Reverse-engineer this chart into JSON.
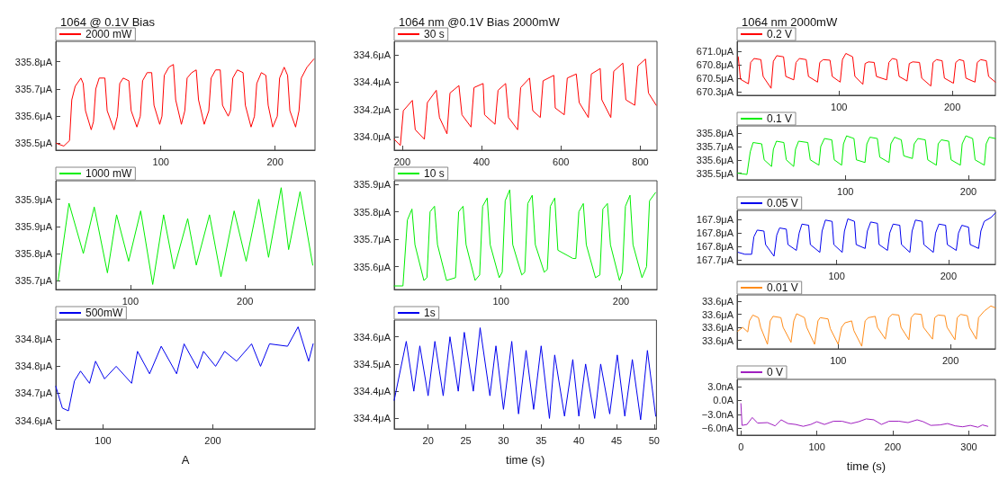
{
  "chart_data": [
    {
      "type": "line",
      "title": "1064 @ 0.1V Bias",
      "legend": "top left",
      "xlim": [
        8,
        235
      ],
      "xticks": [
        100,
        200
      ],
      "ylim": [
        335.475,
        335.875
      ],
      "yticks": [
        {
          "value": 335.5,
          "label": "335.5μA"
        },
        {
          "value": 335.6,
          "label": "335.6μA"
        },
        {
          "value": 335.7,
          "label": "335.7μA"
        },
        {
          "value": 335.8,
          "label": "335.8μA"
        }
      ],
      "series": [
        {
          "name": "2000 mW",
          "color": "#ff0000",
          "x": [
            8.5,
            15,
            20,
            22,
            25,
            30,
            32,
            34,
            39,
            41,
            43,
            46,
            51,
            53,
            59,
            62,
            64,
            67,
            72,
            74,
            79,
            82,
            84,
            88,
            92,
            94,
            99,
            101,
            103,
            107,
            111,
            113,
            118,
            121,
            123,
            127,
            131,
            133,
            138,
            142,
            144,
            148,
            152,
            154,
            159,
            161,
            163,
            167,
            172,
            174,
            179,
            182,
            184,
            188,
            192,
            194,
            198,
            202,
            204,
            208,
            211,
            213,
            218,
            221,
            223,
            228,
            234
          ],
          "values": [
            335.5,
            335.49,
            335.51,
            335.66,
            335.71,
            335.74,
            335.72,
            335.62,
            335.55,
            335.58,
            335.7,
            335.74,
            335.74,
            335.62,
            335.55,
            335.6,
            335.72,
            335.74,
            335.73,
            335.62,
            335.56,
            335.6,
            335.73,
            335.76,
            335.76,
            335.64,
            335.57,
            335.6,
            335.75,
            335.78,
            335.79,
            335.66,
            335.57,
            335.62,
            335.74,
            335.76,
            335.77,
            335.66,
            335.57,
            335.62,
            335.74,
            335.77,
            335.77,
            335.64,
            335.6,
            335.62,
            335.74,
            335.77,
            335.76,
            335.64,
            335.56,
            335.6,
            335.72,
            335.76,
            335.75,
            335.64,
            335.56,
            335.6,
            335.74,
            335.78,
            335.75,
            335.62,
            335.56,
            335.62,
            335.74,
            335.78,
            335.81
          ]
        }
      ]
    },
    {
      "type": "line",
      "legend": "top left",
      "xlim": [
        35,
        261
      ],
      "xticks": [
        100,
        200
      ],
      "ylim": [
        335.697,
        335.978
      ],
      "yticks": [
        {
          "value": 335.72,
          "label": "335.7μA"
        },
        {
          "value": 335.79,
          "label": "335.8μA"
        },
        {
          "value": 335.86,
          "label": "335.9μA"
        },
        {
          "value": 335.93,
          "label": "335.9μA"
        }
      ],
      "series": [
        {
          "name": "1000 mW",
          "color": "#00ee00",
          "x": [
            37,
            46.5,
            59,
            68.5,
            80,
            88,
            98.5,
            109,
            119.5,
            129,
            138,
            150,
            157.5,
            169,
            179,
            190.5,
            201,
            212,
            220.5,
            231.5,
            238,
            248,
            259
          ],
          "values": [
            335.72,
            335.92,
            335.79,
            335.91,
            335.74,
            335.89,
            335.77,
            335.9,
            335.71,
            335.89,
            335.75,
            335.88,
            335.76,
            335.89,
            335.73,
            335.9,
            335.77,
            335.93,
            335.78,
            335.96,
            335.8,
            335.95,
            335.76
          ]
        }
      ]
    },
    {
      "type": "line",
      "legend": "top left",
      "xlabel": "A",
      "xlim": [
        57,
        293
      ],
      "xticks": [
        100,
        200
      ],
      "ylim": [
        334.575,
        334.895
      ],
      "yticks": [
        {
          "value": 334.6,
          "label": "334.6μA"
        },
        {
          "value": 334.68,
          "label": "334.7μA"
        },
        {
          "value": 334.76,
          "label": "334.8μA"
        },
        {
          "value": 334.84,
          "label": "334.8μA"
        }
      ],
      "series": [
        {
          "name": "500mW",
          "color": "#0000ee",
          "x": [
            57,
            63,
            68.5,
            74,
            79.5,
            87.7,
            93.2,
            101.4,
            112,
            126,
            131.4,
            142.4,
            153,
            167,
            173.8,
            186,
            191.5,
            202.5,
            210.7,
            221.6,
            235.3,
            243.4,
            251.6,
            268,
            277.6,
            287.2,
            291.3
          ],
          "values": [
            334.7,
            334.636,
            334.628,
            334.716,
            334.745,
            334.709,
            334.774,
            334.722,
            334.759,
            334.709,
            334.803,
            334.737,
            334.818,
            334.737,
            334.825,
            334.753,
            334.803,
            334.759,
            334.803,
            334.774,
            334.825,
            334.759,
            334.825,
            334.818,
            334.875,
            334.774,
            334.825
          ]
        }
      ]
    },
    {
      "type": "line",
      "title": "1064 nm @0.1V Bias 2000mW",
      "legend": "top left",
      "xlim": [
        180,
        842
      ],
      "xticks": [
        200,
        400,
        600,
        800
      ],
      "ylim": [
        333.9,
        334.7
      ],
      "yticks": [
        {
          "value": 334.0,
          "label": "334.0μA"
        },
        {
          "value": 334.2,
          "label": "334.2μA"
        },
        {
          "value": 334.4,
          "label": "334.4μA"
        },
        {
          "value": 334.6,
          "label": "334.6μA"
        }
      ],
      "series": [
        {
          "name": "30 s",
          "color": "#ff0000",
          "x": [
            180,
            195.5,
            203,
            225.7,
            233,
            256,
            263.6,
            286,
            294,
            313,
            320.5,
            343,
            350.7,
            373.4,
            381,
            404,
            407.6,
            434,
            441.6,
            460.7,
            468,
            491,
            498.5,
            521,
            529,
            548,
            555,
            582,
            585.7,
            608.4,
            616,
            638.6,
            646,
            669,
            676.6,
            699,
            703,
            725.7,
            733,
            756,
            763.6,
            786,
            794,
            813,
            820.5,
            840
          ],
          "values": [
            333.98,
            333.935,
            334.19,
            334.266,
            334.05,
            333.98,
            334.25,
            334.34,
            334.14,
            334.02,
            334.32,
            334.375,
            334.16,
            334.07,
            334.36,
            334.39,
            334.16,
            334.09,
            334.34,
            334.39,
            334.14,
            334.05,
            334.36,
            334.43,
            334.19,
            334.14,
            334.41,
            334.45,
            334.21,
            334.16,
            334.43,
            334.46,
            334.25,
            334.14,
            334.46,
            334.5,
            334.27,
            334.14,
            334.48,
            334.54,
            334.27,
            334.23,
            334.52,
            334.57,
            334.32,
            334.23
          ]
        }
      ]
    },
    {
      "type": "line",
      "legend": "top left",
      "xlim": [
        11,
        230
      ],
      "xticks": [
        100,
        200
      ],
      "ylim": [
        335.517,
        335.913
      ],
      "yticks": [
        {
          "value": 335.6,
          "label": "335.6μA"
        },
        {
          "value": 335.7,
          "label": "335.7μA"
        },
        {
          "value": 335.8,
          "label": "335.8μA"
        },
        {
          "value": 335.9,
          "label": "335.9μA"
        }
      ],
      "series": [
        {
          "name": "10 s",
          "color": "#00ee00",
          "x": [
            11,
            18.3,
            22,
            25.8,
            28.3,
            35.7,
            38.3,
            40.9,
            44.6,
            47.1,
            54.6,
            62.1,
            64.7,
            68.4,
            70.9,
            78.4,
            82.2,
            84.7,
            88.5,
            91,
            98.5,
            101,
            103.5,
            107.3,
            109.8,
            117.3,
            119.8,
            122.3,
            126,
            128.6,
            136,
            138.6,
            141.1,
            144.8,
            147.4,
            159.9,
            162.4,
            164.9,
            168.6,
            171.1,
            178.7,
            182.4,
            184.9,
            188.7,
            191.2,
            198.7,
            201.2,
            203.7,
            207.5,
            210,
            217.5,
            221.3,
            223.8,
            228.8
          ],
          "values": [
            335.53,
            335.53,
            335.77,
            335.81,
            335.68,
            335.55,
            335.56,
            335.8,
            335.82,
            335.68,
            335.55,
            335.56,
            335.8,
            335.82,
            335.68,
            335.55,
            335.57,
            335.82,
            335.85,
            335.68,
            335.56,
            335.58,
            335.84,
            335.88,
            335.68,
            335.57,
            335.58,
            335.83,
            335.86,
            335.68,
            335.58,
            335.59,
            335.82,
            335.85,
            335.66,
            335.63,
            335.63,
            335.8,
            335.83,
            335.68,
            335.56,
            335.57,
            335.81,
            335.83,
            335.68,
            335.55,
            335.58,
            335.82,
            335.86,
            335.68,
            335.56,
            335.6,
            335.84,
            335.87
          ]
        }
      ]
    },
    {
      "type": "line",
      "legend": "top left",
      "xlabel": "time (s)",
      "xlim": [
        15.5,
        50.3
      ],
      "xticks": [
        20,
        25,
        30,
        35,
        40,
        45,
        50
      ],
      "ylim": [
        334.357,
        334.597
      ],
      "yticks": [
        {
          "value": 334.38,
          "label": "334.4μA"
        },
        {
          "value": 334.44,
          "label": "334.4μA"
        },
        {
          "value": 334.5,
          "label": "334.5μA"
        },
        {
          "value": 334.56,
          "label": "334.6μA"
        }
      ],
      "series": [
        {
          "name": "1s",
          "color": "#0000ee",
          "x": [
            15.5,
            17.1,
            18.1,
            18.9,
            20,
            20.9,
            22,
            22.9,
            24,
            24.8,
            26,
            26.9,
            28.2,
            29,
            30,
            31.1,
            32,
            33,
            34,
            35,
            36.1,
            36.8,
            38.1,
            39.2,
            40,
            40.9,
            42.1,
            42.9,
            44.1,
            45.1,
            46.1,
            47.1,
            48.2,
            49.1,
            50.2
          ],
          "values": [
            334.42,
            334.55,
            334.44,
            334.54,
            334.43,
            334.55,
            334.43,
            334.56,
            334.44,
            334.57,
            334.44,
            334.58,
            334.43,
            334.54,
            334.4,
            334.55,
            334.39,
            334.53,
            334.4,
            334.54,
            334.38,
            334.52,
            334.385,
            334.51,
            334.385,
            334.5,
            334.38,
            334.5,
            334.39,
            334.52,
            334.385,
            334.51,
            334.377,
            334.53,
            334.385
          ]
        }
      ]
    },
    {
      "type": "line",
      "title": "1064 nm 2000mW",
      "legend": "top left",
      "xlim": [
        10,
        238
      ],
      "xticks": [
        100,
        200
      ],
      "ylim": [
        670.215,
        671.175
      ],
      "yticks": [
        {
          "value": 670.28,
          "label": "670.3μA"
        },
        {
          "value": 670.52,
          "label": "670.5μA"
        },
        {
          "value": 670.76,
          "label": "670.8μA"
        },
        {
          "value": 671.0,
          "label": "671.0μA"
        }
      ],
      "series": [
        {
          "name": "0.2 V",
          "color": "#ff0000",
          "x": [
            11,
            13,
            20,
            22,
            25,
            31,
            33,
            40,
            42,
            45,
            51,
            53,
            60,
            62,
            65,
            71,
            73,
            81,
            83,
            86,
            92,
            94,
            101,
            103,
            106,
            112,
            114,
            121,
            123,
            126,
            131,
            133,
            142,
            144,
            147,
            151,
            153,
            160,
            162,
            165,
            171,
            173,
            181,
            183,
            186,
            191,
            193,
            201,
            203,
            206,
            210,
            212,
            220,
            222,
            225,
            230,
            232,
            238
          ],
          "values": [
            670.9,
            670.5,
            670.42,
            670.8,
            670.87,
            670.85,
            670.55,
            670.34,
            670.82,
            670.92,
            670.9,
            670.55,
            670.49,
            670.8,
            670.87,
            670.85,
            670.55,
            670.45,
            670.8,
            670.85,
            670.84,
            670.55,
            670.45,
            670.85,
            670.96,
            670.9,
            670.55,
            670.41,
            670.78,
            670.81,
            670.8,
            670.55,
            670.49,
            670.8,
            670.87,
            670.85,
            670.55,
            670.47,
            670.78,
            670.81,
            670.8,
            670.52,
            670.38,
            670.8,
            670.85,
            670.83,
            670.52,
            670.43,
            670.8,
            670.85,
            670.83,
            670.52,
            670.45,
            670.8,
            670.85,
            670.83,
            670.55,
            670.45
          ]
        }
      ]
    },
    {
      "type": "line",
      "legend": "top left",
      "xlim": [
        12,
        222
      ],
      "xticks": [
        100,
        200
      ],
      "ylim": [
        335.45,
        335.855
      ],
      "yticks": [
        {
          "value": 335.5,
          "label": "335.5μA"
        },
        {
          "value": 335.6,
          "label": "335.6μA"
        },
        {
          "value": 335.7,
          "label": "335.7μA"
        },
        {
          "value": 335.8,
          "label": "335.8μA"
        }
      ],
      "series": [
        {
          "name": "0.1 V",
          "color": "#00ee00",
          "x": [
            12.5,
            20,
            22.7,
            25,
            32,
            34,
            40,
            41.5,
            44,
            50,
            52,
            58,
            59.5,
            62,
            69.5,
            71.5,
            78.5,
            80,
            83,
            89,
            91,
            97,
            98.5,
            101,
            107,
            109,
            116,
            117.5,
            120,
            126,
            128,
            135.5,
            137,
            140,
            145.5,
            147.5,
            154.5,
            156,
            159,
            165,
            167,
            174,
            175.5,
            178,
            184,
            186,
            193.5,
            195,
            198,
            203.5,
            205.5,
            213,
            214.5,
            217,
            222
          ],
          "values": [
            335.5,
            335.49,
            335.66,
            335.73,
            335.72,
            335.6,
            335.55,
            335.68,
            335.74,
            335.73,
            335.6,
            335.55,
            335.68,
            335.74,
            335.73,
            335.6,
            335.56,
            335.7,
            335.76,
            335.75,
            335.6,
            335.56,
            335.72,
            335.78,
            335.76,
            335.6,
            335.58,
            335.72,
            335.77,
            335.76,
            335.62,
            335.58,
            335.72,
            335.77,
            335.75,
            335.63,
            335.61,
            335.72,
            335.76,
            335.75,
            335.6,
            335.56,
            335.72,
            335.75,
            335.74,
            335.6,
            335.56,
            335.72,
            335.78,
            335.76,
            335.6,
            335.56,
            335.72,
            335.77,
            335.76
          ]
        }
      ]
    },
    {
      "type": "line",
      "legend": "top left",
      "xlim": [
        11,
        242
      ],
      "xticks": [
        100,
        200
      ],
      "ylim": [
        167.678,
        167.957
      ],
      "yticks": [
        {
          "value": 167.7,
          "label": "167.7μA"
        },
        {
          "value": 167.77,
          "label": "167.8μA"
        },
        {
          "value": 167.84,
          "label": "167.8μA"
        },
        {
          "value": 167.91,
          "label": "167.9μA"
        }
      ],
      "series": [
        {
          "name": "0.05 V",
          "color": "#0000ee",
          "x": [
            12,
            18,
            24,
            26,
            29,
            35,
            36.5,
            44,
            46.5,
            49,
            55,
            56.5,
            64,
            66.5,
            69,
            75,
            76.5,
            85,
            87,
            90,
            96,
            97.5,
            105,
            107,
            110,
            116,
            117.5,
            125.5,
            127.5,
            130.5,
            136.5,
            138,
            145.5,
            147.5,
            150.5,
            156.5,
            158,
            165.5,
            167.5,
            170.5,
            176.5,
            178,
            186.5,
            188.5,
            191.5,
            197.5,
            199,
            207,
            209,
            212,
            218,
            219.5,
            227,
            229,
            232,
            238,
            242
          ],
          "values": [
            167.74,
            167.73,
            167.73,
            167.82,
            167.855,
            167.85,
            167.78,
            167.72,
            167.83,
            167.866,
            167.86,
            167.78,
            167.75,
            167.84,
            167.886,
            167.88,
            167.78,
            167.74,
            167.85,
            167.907,
            167.9,
            167.78,
            167.74,
            167.85,
            167.913,
            167.9,
            167.78,
            167.76,
            167.85,
            167.897,
            167.89,
            167.78,
            167.75,
            167.84,
            167.886,
            167.88,
            167.78,
            167.74,
            167.85,
            167.907,
            167.9,
            167.78,
            167.74,
            167.84,
            167.886,
            167.88,
            167.78,
            167.75,
            167.84,
            167.88,
            167.87,
            167.78,
            167.76,
            167.85,
            167.9,
            167.92,
            167.944
          ]
        }
      ]
    },
    {
      "type": "line",
      "legend": "top left",
      "xlim": [
        10,
        240
      ],
      "xticks": [
        100,
        200
      ],
      "ylim": [
        33.557,
        33.64
      ],
      "yticks": [
        {
          "value": 33.57,
          "label": "33.6μA"
        },
        {
          "value": 33.59,
          "label": "33.6μA"
        },
        {
          "value": 33.61,
          "label": "33.6μA"
        },
        {
          "value": 33.63,
          "label": "33.6μA"
        }
      ],
      "series": [
        {
          "name": "0.01 V",
          "color": "#ff8c1a",
          "x": [
            10.5,
            15,
            19.5,
            21,
            24,
            29,
            31,
            37,
            39.5,
            42,
            49,
            51,
            58,
            60.5,
            63,
            70,
            72,
            79,
            82,
            84,
            91,
            93,
            100,
            103,
            106,
            112,
            114,
            121,
            124,
            127,
            133,
            135,
            142,
            145,
            148,
            154,
            156,
            163,
            165,
            168,
            174,
            176,
            184,
            186,
            189,
            195,
            197,
            204,
            206,
            209,
            215,
            217,
            223,
            225,
            230,
            236,
            240
          ],
          "values": [
            33.584,
            33.59,
            33.583,
            33.6,
            33.609,
            33.605,
            33.59,
            33.564,
            33.6,
            33.607,
            33.605,
            33.59,
            33.567,
            33.6,
            33.611,
            33.605,
            33.59,
            33.564,
            33.6,
            33.605,
            33.603,
            33.588,
            33.564,
            33.59,
            33.597,
            33.6,
            33.585,
            33.561,
            33.6,
            33.605,
            33.607,
            33.59,
            33.572,
            33.605,
            33.61,
            33.609,
            33.59,
            33.571,
            33.605,
            33.611,
            33.61,
            33.59,
            33.572,
            33.605,
            33.609,
            33.608,
            33.59,
            33.571,
            33.605,
            33.61,
            33.608,
            33.59,
            33.572,
            33.605,
            33.615,
            33.623,
            33.62
          ]
        }
      ]
    },
    {
      "type": "line",
      "legend": "top left",
      "xlabel": "time (s)",
      "xlim": [
        -5,
        335
      ],
      "xticks": [
        0,
        100,
        200,
        300
      ],
      "ylim": [
        -7.5,
        4.5
      ],
      "yticks": [
        {
          "value": -6,
          "label": "−6.0nA"
        },
        {
          "value": -3,
          "label": "−3.0nA"
        },
        {
          "value": 0,
          "label": "0.0A"
        },
        {
          "value": 3,
          "label": "3.0nA"
        }
      ],
      "series": [
        {
          "name": "0 V",
          "color": "#a020c0",
          "x": [
            0,
            1.5,
            8,
            15,
            22,
            35,
            45,
            53,
            62,
            72,
            82,
            92,
            100,
            110,
            122,
            133,
            145,
            155,
            165,
            175,
            185,
            195,
            208,
            220,
            232,
            240,
            250,
            262,
            272,
            282,
            292,
            302,
            312,
            318,
            325
          ],
          "values": [
            -0.7,
            -5.4,
            -5.2,
            -3.7,
            -4.9,
            -4.8,
            -5.5,
            -4.2,
            -5.0,
            -5.2,
            -5.6,
            -5.2,
            -4.6,
            -5.2,
            -4.5,
            -4.5,
            -5.0,
            -4.6,
            -4.0,
            -4.2,
            -5.2,
            -4.5,
            -4.5,
            -4.8,
            -4.2,
            -4.6,
            -5.4,
            -5.3,
            -5.0,
            -5.5,
            -5.7,
            -5.4,
            -5.8,
            -5.3,
            -5.6
          ]
        }
      ]
    }
  ]
}
